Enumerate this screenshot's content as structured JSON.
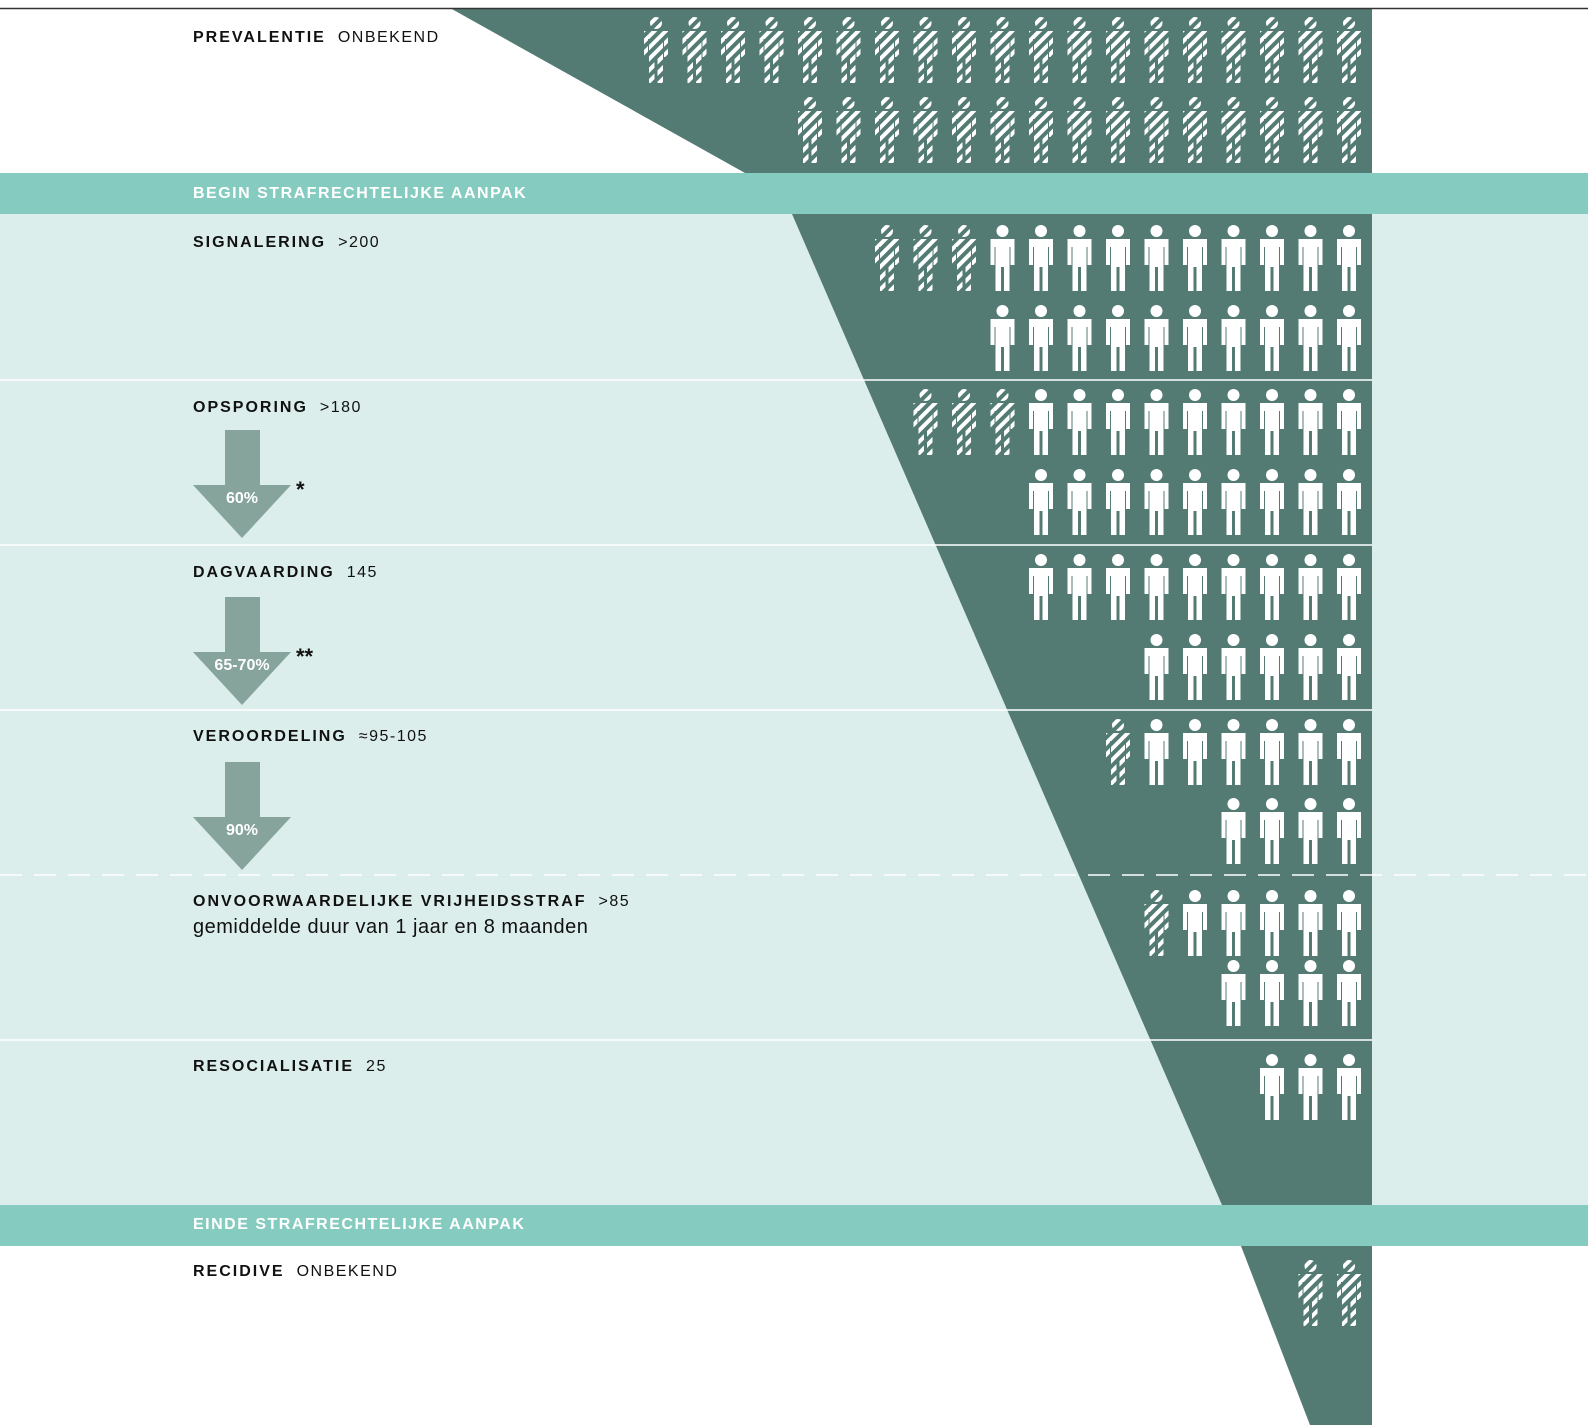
{
  "stages": [
    {
      "label": "PREVALENTIE",
      "value": "ONBEKEND"
    },
    {
      "label": "SIGNALERING",
      "value": ">200"
    },
    {
      "label": "OPSPORING",
      "value": ">180"
    },
    {
      "label": "DAGVAARDING",
      "value": "145"
    },
    {
      "label": "VEROORDELING",
      "value": "≈95-105"
    },
    {
      "label": "ONVOORWAARDELIJKE VRIJHEIDSSTRAF",
      "value": ">85",
      "detail": "gemiddelde duur van 1 jaar en 8 maanden"
    },
    {
      "label": "RESOCIALISATIE",
      "value": "25"
    },
    {
      "label": "RECIDIVE",
      "value": "ONBEKEND"
    }
  ],
  "banners": {
    "begin": "BEGIN STRAFRECHTELIJKE AANPAK",
    "end": "EINDE STRAFRECHTELIJKE AANPAK"
  },
  "arrows": [
    {
      "percent": "60%",
      "note": "*"
    },
    {
      "percent": "65-70%",
      "note": "**"
    },
    {
      "percent": "90%"
    }
  ]
}
